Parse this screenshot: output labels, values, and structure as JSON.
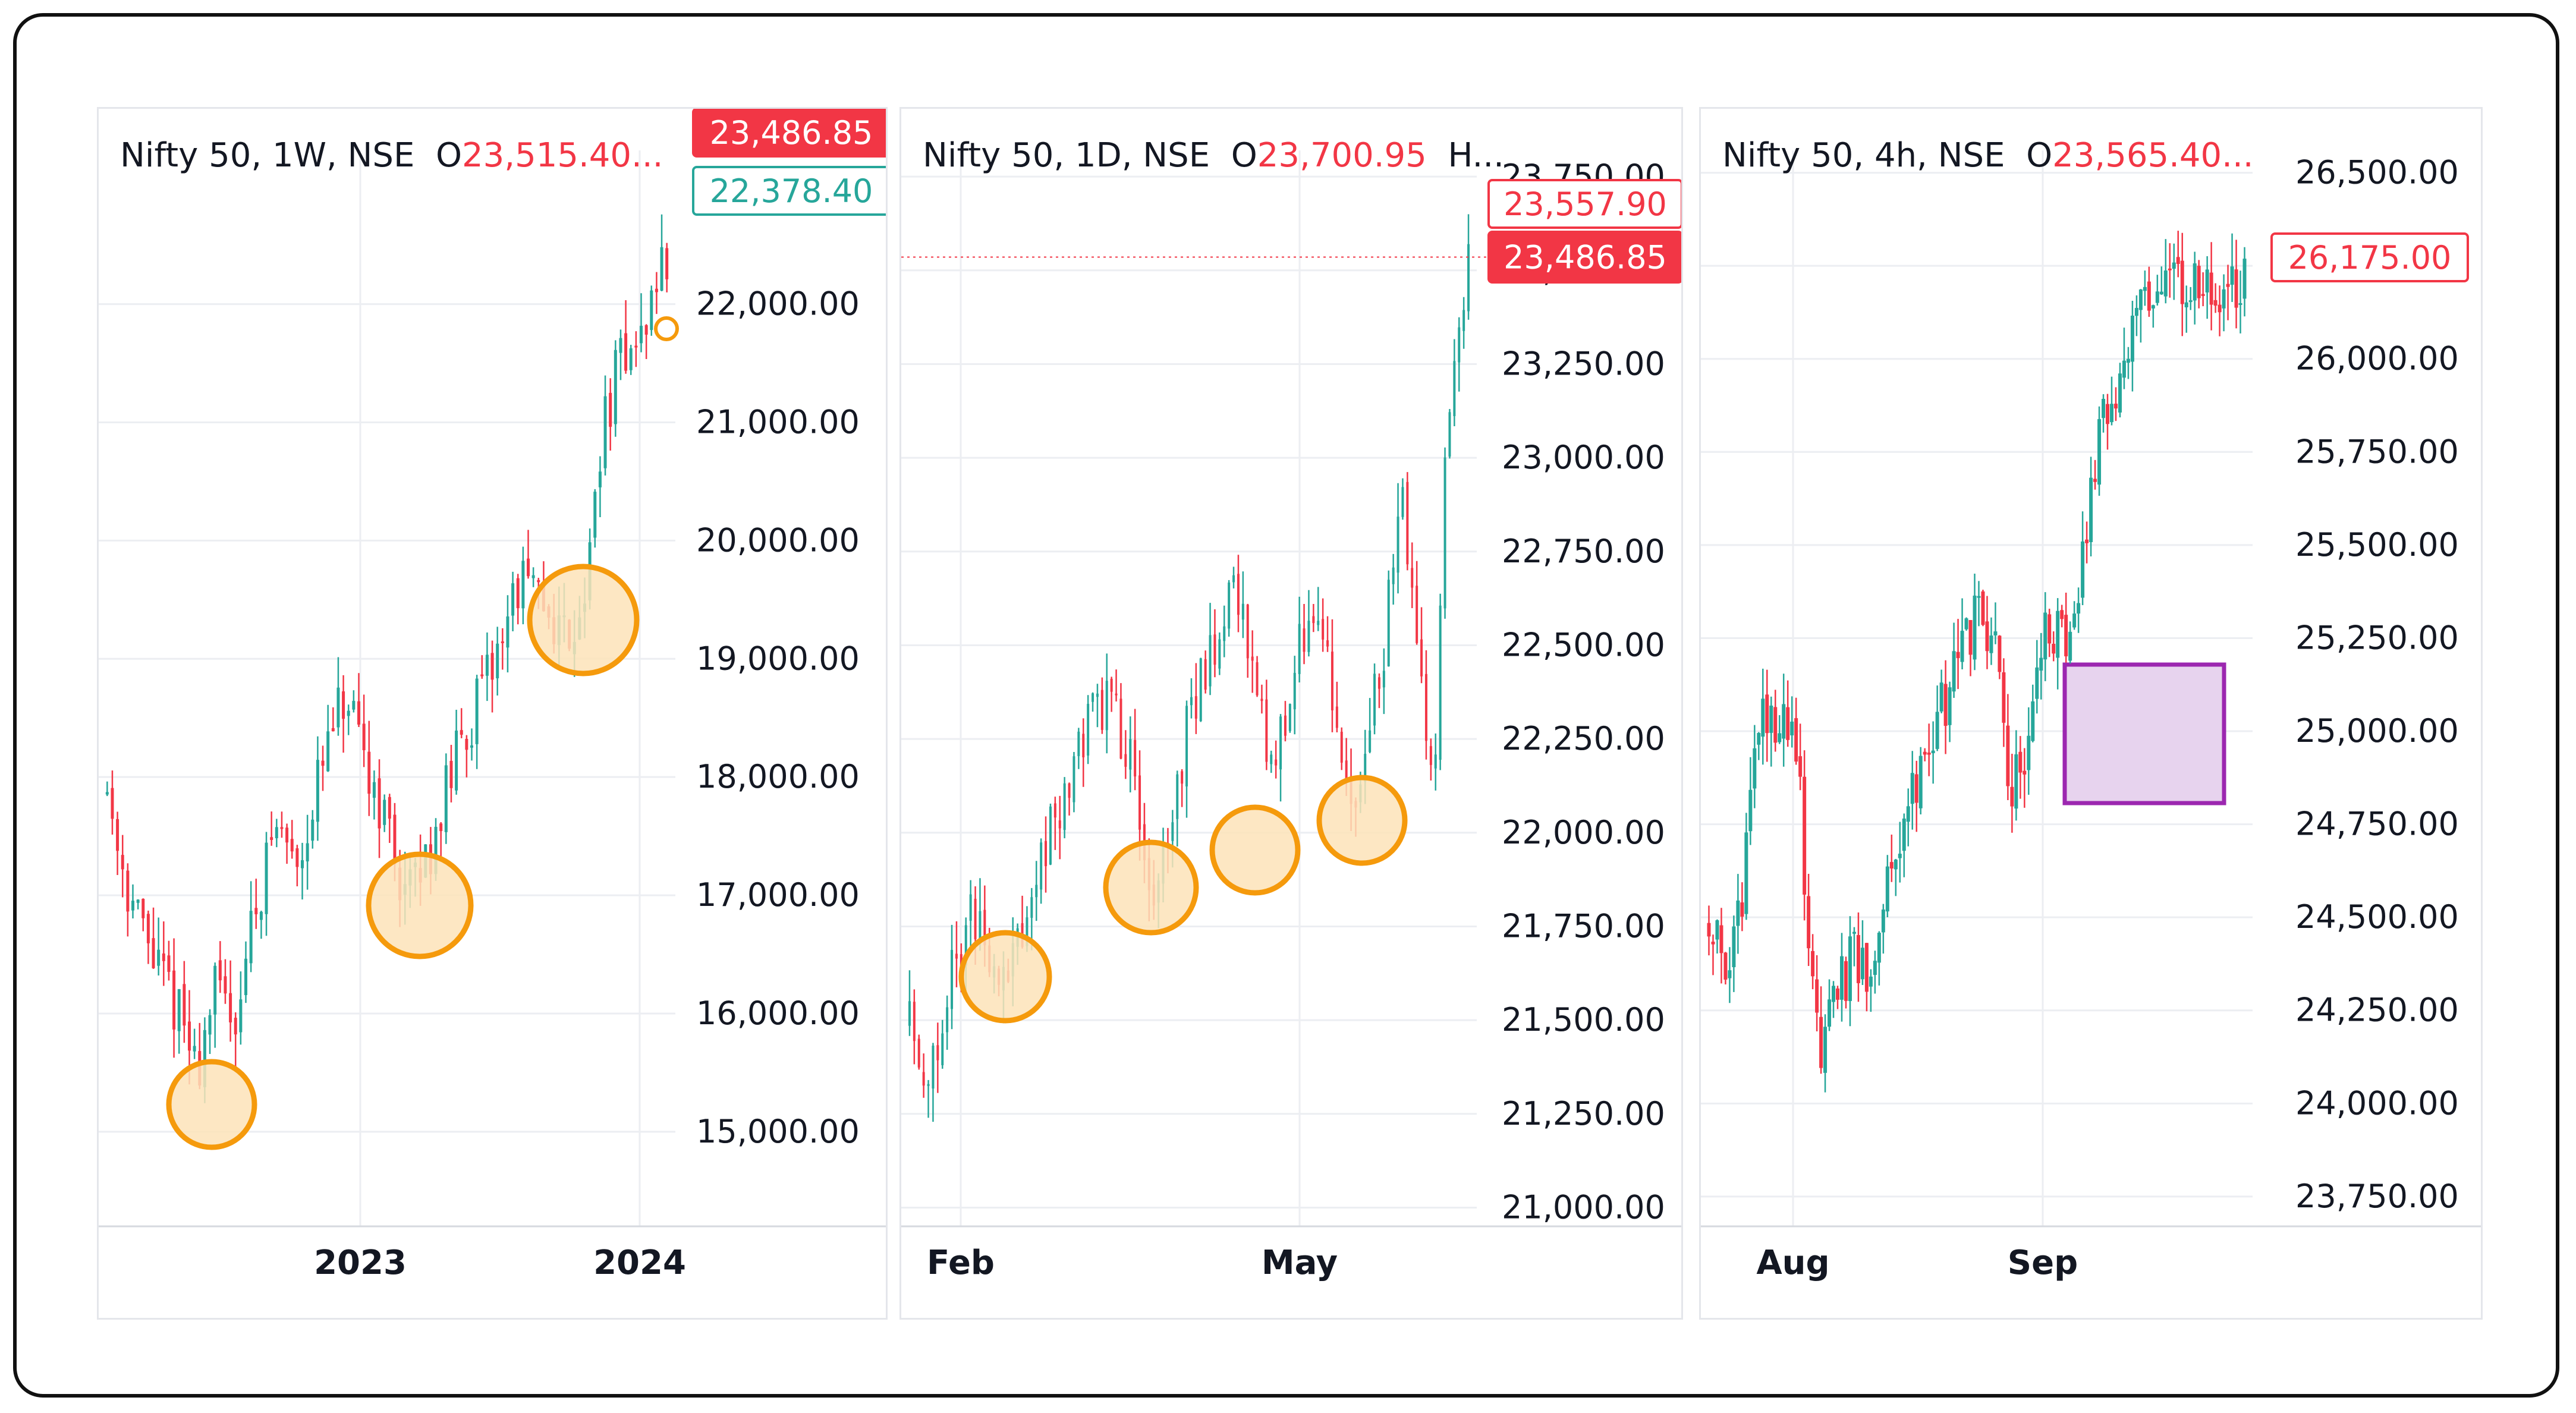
{
  "colors": {
    "up": "#26a69a",
    "down": "#f23645",
    "grid": "#eceef2",
    "axis_text": "#131722",
    "support_circle_stroke": "#f59a0c",
    "support_circle_fill": "#fde3b8",
    "zone_stroke": "#9c27b0",
    "zone_fill": "#e7d3ee"
  },
  "panels": [
    {
      "header": {
        "symbol": "Nifty 50, 1W, NSE",
        "open_prefix": "O",
        "open_value": "23,515.40...",
        "extra": ""
      }
    },
    {
      "header": {
        "symbol": "Nifty 50, 1D, NSE",
        "open_prefix": "O",
        "open_value": "23,700.95",
        "extra": "H..."
      }
    },
    {
      "header": {
        "symbol": "Nifty 50, 4h, NSE",
        "open_prefix": "O",
        "open_value": "23,565.40...",
        "extra": ""
      }
    }
  ],
  "chart_data": [
    {
      "type": "candlestick",
      "title": "Nifty 50, 1W, NSE",
      "x_ticks": [
        "2023",
        "2024"
      ],
      "y_ticks": [
        "15,000.00",
        "16,000.00",
        "17,000.00",
        "18,000.00",
        "19,000.00",
        "20,000.00",
        "21,000.00",
        "22,000.00"
      ],
      "ylim": [
        14200,
        23300
      ],
      "price_labels": [
        {
          "text": "23,486.85",
          "style": "filled-red",
          "value": 23486.85
        },
        {
          "text": "22,378.40",
          "style": "outline-green",
          "value": 22378.4
        }
      ],
      "annotations": [
        {
          "kind": "circle",
          "at": "2022-06",
          "price": 15400
        },
        {
          "kind": "circle",
          "at": "2023-03",
          "price": 17000
        },
        {
          "kind": "circle",
          "at": "2023-10",
          "price": 19300
        },
        {
          "kind": "circle-small",
          "at": "2024-02",
          "price": 21500
        }
      ],
      "series_path": [
        [
          0,
          17900
        ],
        [
          4,
          17000
        ],
        [
          8,
          16500
        ],
        [
          13,
          16000
        ],
        [
          16,
          15500
        ],
        [
          19,
          16200
        ],
        [
          23,
          16000
        ],
        [
          26,
          16800
        ],
        [
          30,
          17600
        ],
        [
          34,
          17300
        ],
        [
          38,
          18000
        ],
        [
          41,
          18500
        ],
        [
          43,
          18600
        ],
        [
          45,
          18200
        ],
        [
          48,
          17900
        ],
        [
          50,
          17600
        ],
        [
          52,
          17200
        ],
        [
          54,
          17000
        ],
        [
          57,
          17300
        ],
        [
          60,
          17800
        ],
        [
          64,
          18400
        ],
        [
          68,
          18800
        ],
        [
          71,
          19300
        ],
        [
          74,
          19700
        ],
        [
          76,
          19500
        ],
        [
          79,
          19400
        ],
        [
          82,
          19200
        ],
        [
          84,
          19400
        ],
        [
          86,
          19700
        ],
        [
          88,
          20800
        ],
        [
          91,
          21400
        ],
        [
          93,
          21700
        ],
        [
          95,
          21600
        ],
        [
          97,
          22000
        ],
        [
          99,
          22300
        ]
      ]
    },
    {
      "type": "candlestick",
      "title": "Nifty 50, 1D, NSE",
      "x_ticks": [
        "Feb",
        "May"
      ],
      "y_ticks": [
        "21,000.00",
        "21,250.00",
        "21,500.00",
        "21,750.00",
        "22,000.00",
        "22,250.00",
        "22,500.00",
        "22,750.00",
        "23,000.00",
        "23,250.00",
        "23,500.00",
        "23,750.00"
      ],
      "ylim": [
        20950,
        23820
      ],
      "price_labels": [
        {
          "text": "23,557.90",
          "style": "outline-red",
          "value": 23557.9
        },
        {
          "text": "23,486.85",
          "style": "filled-red",
          "value": 23486.85
        }
      ],
      "annotations": [
        {
          "kind": "circle",
          "at": "Feb",
          "price": 21500
        },
        {
          "kind": "circle",
          "at": "Apr",
          "price": 21800
        },
        {
          "kind": "circle",
          "at": "Apr-late",
          "price": 21950
        },
        {
          "kind": "circle",
          "at": "May-mid",
          "price": 22050
        }
      ],
      "series_path": [
        [
          0,
          21500
        ],
        [
          4,
          21350
        ],
        [
          8,
          21650
        ],
        [
          12,
          21800
        ],
        [
          16,
          21600
        ],
        [
          20,
          21700
        ],
        [
          24,
          21950
        ],
        [
          28,
          22100
        ],
        [
          32,
          22300
        ],
        [
          36,
          22350
        ],
        [
          40,
          22150
        ],
        [
          43,
          21850
        ],
        [
          46,
          22000
        ],
        [
          50,
          22300
        ],
        [
          54,
          22500
        ],
        [
          58,
          22650
        ],
        [
          61,
          22500
        ],
        [
          64,
          22200
        ],
        [
          67,
          22300
        ],
        [
          70,
          22500
        ],
        [
          73,
          22600
        ],
        [
          76,
          22300
        ],
        [
          79,
          22050
        ],
        [
          82,
          22300
        ],
        [
          85,
          22500
        ],
        [
          88,
          22900
        ],
        [
          90,
          22600
        ],
        [
          92,
          22300
        ],
        [
          94,
          22100
        ],
        [
          96,
          23100
        ],
        [
          98,
          23400
        ],
        [
          100,
          23500
        ]
      ]
    },
    {
      "type": "candlestick",
      "title": "Nifty 50, 4h, NSE",
      "x_ticks": [
        "Aug",
        "Sep"
      ],
      "y_ticks": [
        "23,750.00",
        "24,000.00",
        "24,250.00",
        "24,500.00",
        "24,750.00",
        "25,000.00",
        "25,250.00",
        "25,500.00",
        "25,750.00",
        "26,000.00",
        "26,250.00",
        "26,500.00"
      ],
      "ylim": [
        23670,
        26560
      ],
      "price_labels": [
        {
          "text": "26,175.00",
          "style": "outline-red",
          "value": 26175
        }
      ],
      "annotations": [
        {
          "kind": "rectangle",
          "from": "Sep-early",
          "to": "Sep-mid",
          "price_top": 25120,
          "price_bottom": 24760
        }
      ],
      "series_path": [
        [
          0,
          24500
        ],
        [
          3,
          24350
        ],
        [
          6,
          24500
        ],
        [
          8,
          24950
        ],
        [
          11,
          25050
        ],
        [
          13,
          25000
        ],
        [
          15,
          25000
        ],
        [
          17,
          24850
        ],
        [
          19,
          24300
        ],
        [
          21,
          24100
        ],
        [
          24,
          24300
        ],
        [
          27,
          24400
        ],
        [
          30,
          24300
        ],
        [
          33,
          24600
        ],
        [
          36,
          24750
        ],
        [
          39,
          24900
        ],
        [
          42,
          25000
        ],
        [
          46,
          25150
        ],
        [
          50,
          25300
        ],
        [
          52,
          25250
        ],
        [
          54,
          25200
        ],
        [
          56,
          24850
        ],
        [
          58,
          24900
        ],
        [
          60,
          25000
        ],
        [
          62,
          25250
        ],
        [
          65,
          25300
        ],
        [
          67,
          25200
        ],
        [
          70,
          25500
        ],
        [
          73,
          25850
        ],
        [
          76,
          25900
        ],
        [
          79,
          26100
        ],
        [
          81,
          26200
        ]
      ]
    }
  ]
}
